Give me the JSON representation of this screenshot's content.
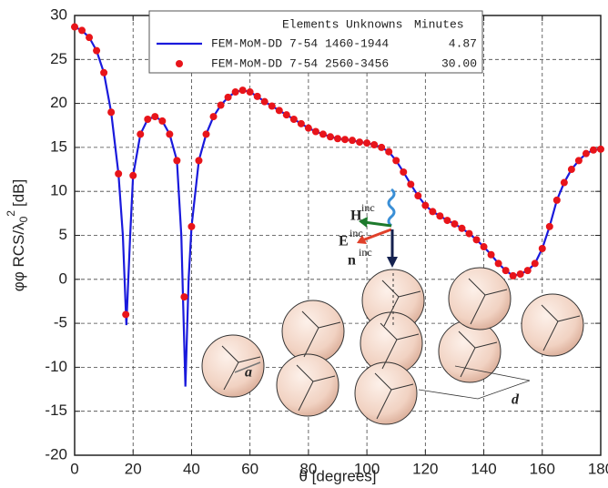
{
  "chart_data": {
    "type": "line",
    "xlabel": "θ [degrees]",
    "ylabel": {
      "main": "φφ RCS/λ",
      "sub": "0",
      "sup": "2",
      "unit": "[dB]"
    },
    "xlim": [
      0,
      180
    ],
    "xticks": [
      0,
      20,
      40,
      60,
      80,
      100,
      120,
      140,
      160,
      180
    ],
    "ylim": [
      -20,
      30
    ],
    "yticks": [
      -20,
      -15,
      -10,
      -5,
      0,
      5,
      10,
      15,
      20,
      25,
      30
    ],
    "grid": true,
    "legend_header": [
      "Elements",
      "Unknowns",
      "Minutes"
    ],
    "series": [
      {
        "name": "FEM-MoM-DD",
        "elements": "7-54",
        "unknowns": "1460-1944",
        "minutes": "4.87",
        "color": "#1a1adc",
        "style": "line",
        "x": [
          0,
          2.5,
          5,
          7.5,
          10,
          12.5,
          15,
          16.5,
          17.7,
          19,
          20,
          22.5,
          25,
          27.5,
          30,
          32.5,
          35,
          36.5,
          37.9,
          39,
          40,
          42.5,
          45,
          47.5,
          50,
          52.5,
          55,
          57.5,
          60,
          62.5,
          65,
          67.5,
          70,
          72.5,
          75,
          77.5,
          80,
          82.5,
          85,
          87.5,
          90,
          92.5,
          95,
          97.5,
          100,
          102.5,
          105,
          107.5,
          110,
          112.5,
          115,
          117.5,
          120,
          122.5,
          125,
          127.5,
          130,
          132.5,
          135,
          137.5,
          140,
          142.5,
          145,
          147.5,
          150,
          152.5,
          155,
          157.5,
          160,
          162.5,
          165,
          167.5,
          170,
          172.5,
          175,
          177.5,
          180
        ],
        "values": [
          28.7,
          28.3,
          27.5,
          26,
          23.5,
          19,
          12,
          5,
          -5.2,
          5,
          11.8,
          16.5,
          18.2,
          18.5,
          18,
          16.5,
          13.5,
          5,
          -12.2,
          0,
          6,
          13.5,
          16.5,
          18.5,
          19.8,
          20.7,
          21.3,
          21.5,
          21.3,
          20.8,
          20.2,
          19.7,
          19.2,
          18.7,
          18.2,
          17.7,
          17.2,
          16.8,
          16.5,
          16.2,
          16,
          15.9,
          15.8,
          15.6,
          15.5,
          15.3,
          15,
          14.5,
          13.5,
          12.2,
          10.8,
          9.5,
          8.4,
          7.7,
          7.2,
          6.7,
          6.3,
          5.8,
          5.2,
          4.5,
          3.7,
          2.8,
          1.8,
          1,
          0.4,
          0.6,
          1,
          1.8,
          3.5,
          6,
          9,
          11,
          12.5,
          13.5,
          14.3,
          14.7,
          14.8
        ]
      },
      {
        "name": "FEM-MoM-DD",
        "elements": "7-54",
        "unknowns": "2560-3456",
        "minutes": "30.00",
        "color": "#e8141a",
        "style": "dots",
        "x": [
          0,
          2.5,
          5,
          7.5,
          10,
          12.5,
          15,
          17.5,
          20,
          22.5,
          25,
          27.5,
          30,
          32.5,
          35,
          37.5,
          40,
          42.5,
          45,
          47.5,
          50,
          52.5,
          55,
          57.5,
          60,
          62.5,
          65,
          67.5,
          70,
          72.5,
          75,
          77.5,
          80,
          82.5,
          85,
          87.5,
          90,
          92.5,
          95,
          97.5,
          100,
          102.5,
          105,
          107.5,
          110,
          112.5,
          115,
          117.5,
          120,
          122.5,
          125,
          127.5,
          130,
          132.5,
          135,
          137.5,
          140,
          142.5,
          145,
          147.5,
          150,
          152.5,
          155,
          157.5,
          160,
          162.5,
          165,
          167.5,
          170,
          172.5,
          175,
          177.5,
          180
        ],
        "values": [
          28.7,
          28.3,
          27.5,
          26,
          23.5,
          19,
          12,
          -4,
          11.8,
          16.5,
          18.2,
          18.5,
          18,
          16.5,
          13.5,
          -2,
          6,
          13.5,
          16.5,
          18.5,
          19.8,
          20.7,
          21.3,
          21.5,
          21.3,
          20.8,
          20.2,
          19.7,
          19.2,
          18.7,
          18.2,
          17.7,
          17.2,
          16.8,
          16.5,
          16.2,
          16,
          15.9,
          15.8,
          15.6,
          15.5,
          15.3,
          15,
          14.5,
          13.5,
          12.2,
          10.8,
          9.5,
          8.4,
          7.7,
          7.2,
          6.7,
          6.3,
          5.8,
          5.2,
          4.5,
          3.7,
          2.8,
          1.8,
          1,
          0.4,
          0.6,
          1,
          1.8,
          3.5,
          6,
          9,
          11,
          12.5,
          13.5,
          14.3,
          14.7,
          14.8
        ]
      }
    ],
    "annotations": [
      {
        "label": "H",
        "sup": "inc"
      },
      {
        "label": "E",
        "sup": "inc"
      },
      {
        "label": "n",
        "sup": "inc"
      },
      {
        "label": "a"
      },
      {
        "label": "d"
      }
    ]
  }
}
